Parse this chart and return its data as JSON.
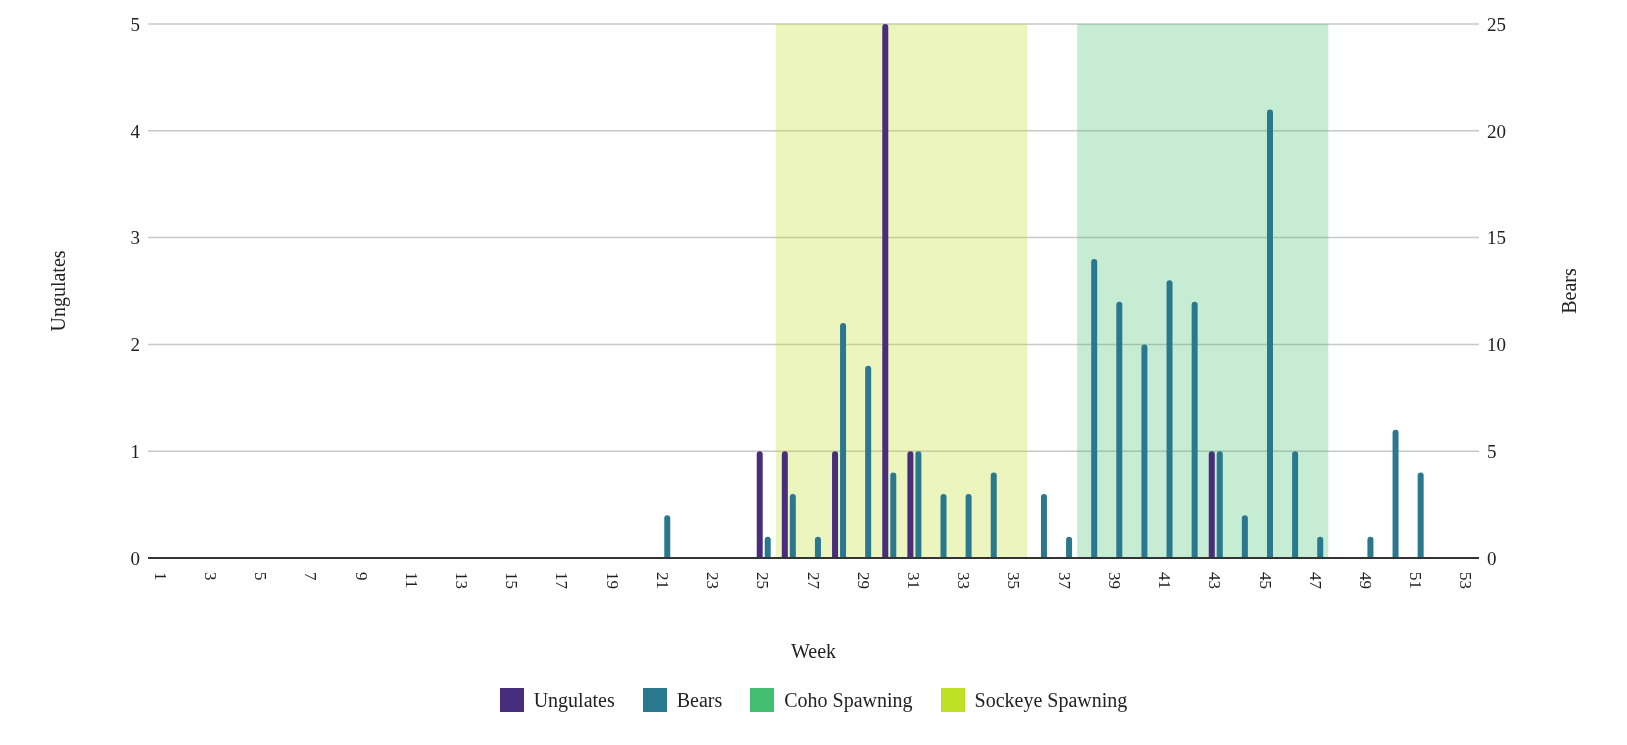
{
  "chart_data": {
    "type": "bar",
    "xlabel": "Week",
    "ylabel": "Ungulates",
    "y2label": "Bears",
    "x": [
      1,
      2,
      3,
      4,
      5,
      6,
      7,
      8,
      9,
      10,
      11,
      12,
      13,
      14,
      15,
      16,
      17,
      18,
      19,
      20,
      21,
      22,
      23,
      24,
      25,
      26,
      27,
      28,
      29,
      30,
      31,
      32,
      33,
      34,
      35,
      36,
      37,
      38,
      39,
      40,
      41,
      42,
      43,
      44,
      45,
      46,
      47,
      48,
      49,
      50,
      51,
      52,
      53
    ],
    "series": [
      {
        "name": "Ungulates",
        "color": "#472d7b",
        "values": [
          0,
          0,
          0,
          0,
          0,
          0,
          0,
          0,
          0,
          0,
          0,
          0,
          0,
          0,
          0,
          0,
          0,
          0,
          0,
          0,
          0,
          0,
          0,
          0,
          1,
          1,
          0,
          1,
          0,
          5,
          1,
          0,
          0,
          0,
          0,
          0,
          0,
          0,
          0,
          0,
          0,
          0,
          1,
          0,
          0,
          0,
          0,
          0,
          0,
          0,
          0,
          0,
          0
        ]
      },
      {
        "name": "Bears",
        "color": "#2a788e",
        "axis": "y2",
        "values": [
          0,
          0,
          0,
          0,
          0,
          0,
          0,
          0,
          0,
          0,
          0,
          0,
          0,
          0,
          0,
          0,
          0,
          0,
          0,
          0,
          2,
          0,
          0,
          0,
          1,
          3,
          1,
          11,
          9,
          4,
          5,
          3,
          3,
          4,
          0,
          3,
          1,
          14,
          12,
          10,
          13,
          12,
          5,
          2,
          21,
          5,
          1,
          0,
          1,
          6,
          4,
          0,
          0
        ]
      }
    ],
    "bands": [
      {
        "axis": "x",
        "from": 37.5,
        "to": 47.5,
        "label": "Coho Spawning",
        "color": "#43bf71"
      },
      {
        "axis": "x",
        "from": 25.5,
        "to": 35.5,
        "label": "Sockeye Spawning",
        "color": "#bddf26"
      }
    ],
    "xlim": [
      0.5,
      53.5
    ],
    "xticks": [
      1,
      3,
      5,
      7,
      9,
      11,
      13,
      15,
      17,
      19,
      21,
      23,
      25,
      27,
      29,
      31,
      33,
      35,
      37,
      39,
      41,
      43,
      45,
      47,
      49,
      51,
      53
    ],
    "ylim": [
      0,
      5
    ],
    "yticks": [
      0,
      1,
      2,
      3,
      4,
      5
    ],
    "y2lim": [
      0,
      25
    ],
    "y2ticks": [
      0,
      5,
      10,
      15,
      20,
      25
    ],
    "grid": "y",
    "legend": "bottom"
  }
}
